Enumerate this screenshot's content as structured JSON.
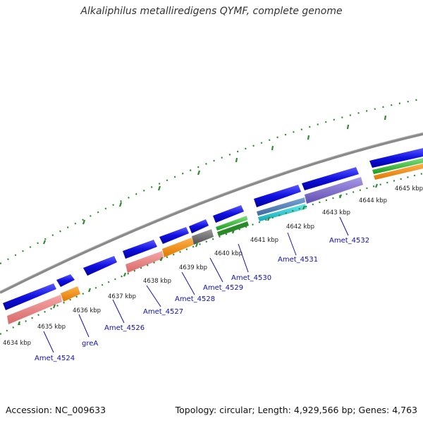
{
  "title": "Alkaliphilus metalliredigens QYMF, complete genome",
  "footer": {
    "accession": "Accession: NC_009633",
    "summary": "Topology: circular; Length: 4,929,566 bp; Genes: 4,763"
  },
  "colors": {
    "backbone": "#8a8a8a",
    "ticks": "#2e8b2e",
    "label_text": "#1010b0",
    "gene_blue": "#1010e0",
    "pink": "#f08080",
    "orange": "#ff8c00",
    "gray": "#707070",
    "green": "#32cd32",
    "steel": "#4a7ab0",
    "cyan": "#20c8d8",
    "purple": "#7b68c8"
  },
  "ticks": [
    "4634 kbp",
    "4635 kbp",
    "4636 kbp",
    "4637 kbp",
    "4638 kbp",
    "4639 kbp",
    "4640 kbp",
    "4641 kbp",
    "4642 kbp",
    "4643 kbp",
    "4644 kbp",
    "4645 kbp"
  ],
  "gene_labels": [
    "Amet_4524",
    "greA",
    "Amet_4526",
    "Amet_4527",
    "Amet_4528",
    "Amet_4529",
    "Amet_4530",
    "Amet_4531",
    "Amet_4532"
  ]
}
